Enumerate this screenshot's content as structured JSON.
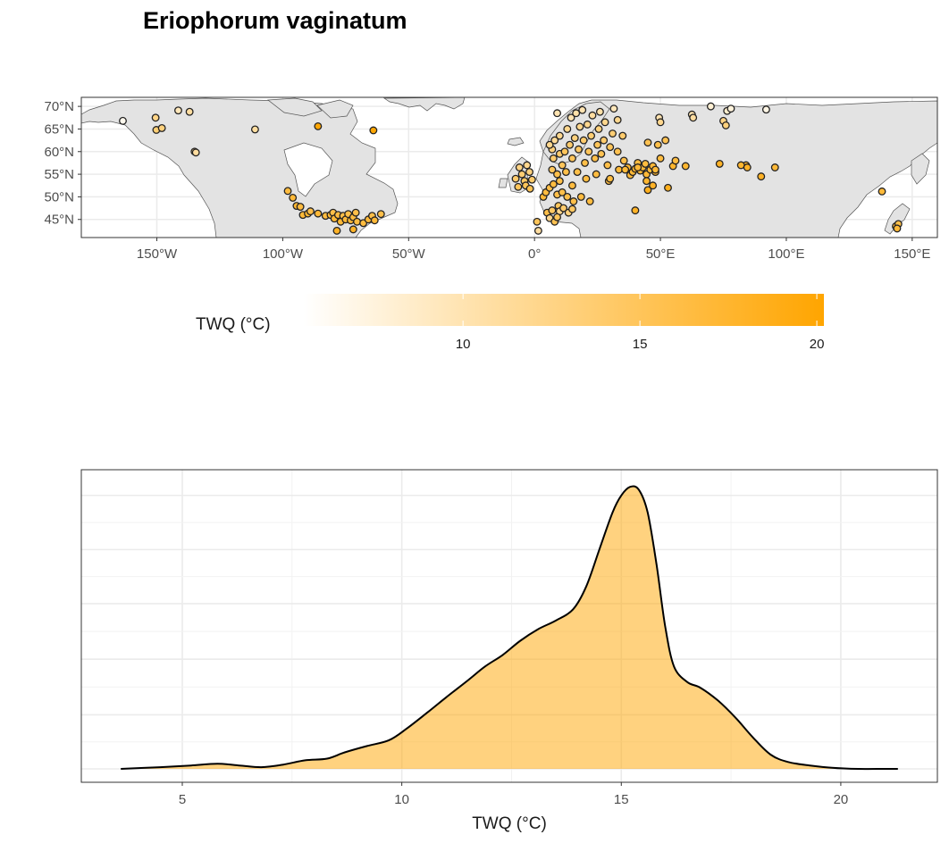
{
  "chart_data": [
    {
      "type": "scatter",
      "subtype": "map",
      "title": "Eriophorum vaginatum",
      "x_ticks": [
        {
          "value": -150,
          "label": "150°W"
        },
        {
          "value": -100,
          "label": "100°W"
        },
        {
          "value": -50,
          "label": "50°W"
        },
        {
          "value": 0,
          "label": "0°"
        },
        {
          "value": 50,
          "label": "50°E"
        },
        {
          "value": 100,
          "label": "100°E"
        },
        {
          "value": 150,
          "label": "150°E"
        }
      ],
      "y_ticks": [
        {
          "value": 45,
          "label": "45°N"
        },
        {
          "value": 50,
          "label": "50°N"
        },
        {
          "value": 55,
          "label": "55°N"
        },
        {
          "value": 60,
          "label": "60°N"
        },
        {
          "value": 65,
          "label": "65°N"
        },
        {
          "value": 70,
          "label": "70°N"
        }
      ],
      "xlim": [
        -180,
        160
      ],
      "ylim": [
        41,
        72
      ],
      "color_legend": {
        "title": "TWQ (°C)",
        "range": [
          5.5,
          20.2
        ],
        "ticks": [
          10,
          15,
          20
        ],
        "colors": [
          "#ffffff",
          "#ffa500"
        ]
      },
      "point_color_variable": "TWQ (°C)",
      "points": [
        [
          -163.5,
          66.8,
          6.5
        ],
        [
          -150.5,
          67.5,
          12.5
        ],
        [
          -150.2,
          64.8,
          13.5
        ],
        [
          -148,
          65.2,
          13
        ],
        [
          -141.5,
          69.1,
          9.5
        ],
        [
          -137,
          68.8,
          11
        ],
        [
          -135,
          60,
          12
        ],
        [
          -134.5,
          59.8,
          11
        ],
        [
          -111,
          64.9,
          11
        ],
        [
          -98,
          51.3,
          16.5
        ],
        [
          -96,
          49.8,
          17
        ],
        [
          -94.5,
          48,
          17.5
        ],
        [
          -93,
          47.8,
          16.5
        ],
        [
          -92,
          46,
          17
        ],
        [
          -90,
          46.3,
          17.5
        ],
        [
          -89,
          46.8,
          16
        ],
        [
          -86,
          46.3,
          17
        ],
        [
          -83,
          45.8,
          16.5
        ],
        [
          -81,
          46,
          17
        ],
        [
          -80,
          46.5,
          16
        ],
        [
          -79.5,
          45.2,
          17
        ],
        [
          -78,
          46,
          16.5
        ],
        [
          -77,
          44.5,
          17
        ],
        [
          -76,
          45.8,
          16
        ],
        [
          -75,
          45,
          17
        ],
        [
          -74,
          46.2,
          16
        ],
        [
          -73,
          44.8,
          17
        ],
        [
          -72,
          45.5,
          16.5
        ],
        [
          -71,
          46.5,
          16
        ],
        [
          -70.5,
          44.5,
          16.5
        ],
        [
          -68,
          44.2,
          16.5
        ],
        [
          -66,
          45,
          17
        ],
        [
          -64.5,
          45.8,
          16
        ],
        [
          -63.5,
          44.8,
          17
        ],
        [
          -61,
          46.2,
          16
        ],
        [
          -78.5,
          42.5,
          18
        ],
        [
          -72,
          42.8,
          18
        ],
        [
          -64,
          64.7,
          20
        ],
        [
          -86,
          65.6,
          20
        ],
        [
          -7.5,
          54,
          14
        ],
        [
          -6,
          56.5,
          12.5
        ],
        [
          -5,
          55,
          13.5
        ],
        [
          -4,
          53.5,
          14.5
        ],
        [
          -3,
          57,
          12
        ],
        [
          -2,
          55.5,
          13
        ],
        [
          -3.5,
          52.5,
          15
        ],
        [
          -6.5,
          52.2,
          15
        ],
        [
          -1.8,
          51.8,
          15.5
        ],
        [
          -1,
          53.8,
          14
        ],
        [
          1.5,
          42.5,
          11
        ],
        [
          3.5,
          50,
          17
        ],
        [
          4.5,
          51,
          16.5
        ],
        [
          5,
          46.5,
          16
        ],
        [
          6,
          52,
          16
        ],
        [
          6,
          45.3,
          12
        ],
        [
          7,
          47,
          14.5
        ],
        [
          7.5,
          52.8,
          16.5
        ],
        [
          7,
          56,
          15
        ],
        [
          7.5,
          58.5,
          14
        ],
        [
          7,
          60.5,
          13
        ],
        [
          6,
          61.5,
          12
        ],
        [
          8,
          62.5,
          11.5
        ],
        [
          9,
          55,
          16
        ],
        [
          9,
          50.5,
          16
        ],
        [
          9.5,
          48,
          15
        ],
        [
          10,
          46.8,
          12
        ],
        [
          10,
          53.5,
          16
        ],
        [
          10,
          59.5,
          14
        ],
        [
          10,
          63.5,
          12
        ],
        [
          11,
          57,
          15
        ],
        [
          11,
          51,
          16
        ],
        [
          11.5,
          47.5,
          14
        ],
        [
          12,
          60,
          15
        ],
        [
          12.5,
          55.5,
          16
        ],
        [
          13,
          50,
          16
        ],
        [
          13,
          65,
          12
        ],
        [
          13.5,
          46.5,
          13
        ],
        [
          14,
          61.5,
          14
        ],
        [
          14.5,
          67.5,
          10
        ],
        [
          15,
          58.5,
          15
        ],
        [
          15,
          52.5,
          16.5
        ],
        [
          15.5,
          49,
          16
        ],
        [
          15,
          47.3,
          14.5
        ],
        [
          16,
          63,
          13
        ],
        [
          16.5,
          68.5,
          10.5
        ],
        [
          17,
          55.5,
          16
        ],
        [
          17.5,
          60.5,
          14.5
        ],
        [
          18,
          65.5,
          12
        ],
        [
          18.5,
          50,
          16.5
        ],
        [
          19,
          69.2,
          10
        ],
        [
          19.5,
          62.5,
          14
        ],
        [
          20,
          57.5,
          16
        ],
        [
          20.5,
          54,
          16.5
        ],
        [
          21,
          66,
          12
        ],
        [
          21.5,
          60,
          15
        ],
        [
          22,
          49,
          16.5
        ],
        [
          22.5,
          63.5,
          13.5
        ],
        [
          23,
          68,
          11
        ],
        [
          24,
          58.5,
          16
        ],
        [
          24.5,
          55,
          16.5
        ],
        [
          25,
          61.5,
          15
        ],
        [
          25.5,
          65,
          13
        ],
        [
          26,
          68.8,
          10.5
        ],
        [
          26.5,
          59.5,
          15.5
        ],
        [
          27.5,
          62.5,
          14
        ],
        [
          28,
          66.5,
          12
        ],
        [
          29,
          57,
          16
        ],
        [
          29.5,
          53.5,
          16.5
        ],
        [
          30,
          61,
          15
        ],
        [
          31,
          64,
          13.5
        ],
        [
          31.5,
          69.5,
          9.5
        ],
        [
          33,
          67,
          12
        ],
        [
          33,
          60,
          15.5
        ],
        [
          33.5,
          56,
          17
        ],
        [
          35,
          63.5,
          14
        ],
        [
          35.5,
          58,
          16
        ],
        [
          37,
          56.5,
          17
        ],
        [
          38,
          54.8,
          17
        ],
        [
          39,
          55.5,
          17
        ],
        [
          40,
          56.2,
          17.5
        ],
        [
          41,
          57.5,
          16.5
        ],
        [
          42,
          55.8,
          17
        ],
        [
          43,
          56.5,
          17
        ],
        [
          44,
          57.3,
          16.5
        ],
        [
          44.5,
          55,
          17
        ],
        [
          45,
          62,
          15.5
        ],
        [
          46,
          56,
          17
        ],
        [
          47,
          56.8,
          17
        ],
        [
          48,
          55.5,
          17.5
        ],
        [
          49,
          61.5,
          16
        ],
        [
          50,
          58.5,
          16.5
        ],
        [
          52,
          62.5,
          15.5
        ],
        [
          30,
          54,
          16.5
        ],
        [
          9,
          68.5,
          10
        ],
        [
          1,
          44.5,
          15
        ],
        [
          8,
          44.5,
          15.5
        ],
        [
          9,
          45.5,
          15
        ],
        [
          49.5,
          67.5,
          10
        ],
        [
          50,
          66.5,
          12
        ],
        [
          44.5,
          53.5,
          17.5
        ],
        [
          45,
          51.5,
          18.5
        ],
        [
          47,
          52.5,
          18
        ],
        [
          53,
          52,
          18.5
        ],
        [
          55,
          56.8,
          17.5
        ],
        [
          56,
          58,
          16.5
        ],
        [
          62.5,
          68.2,
          10
        ],
        [
          75,
          66.8,
          12.5
        ],
        [
          76,
          65.8,
          13
        ],
        [
          76.5,
          69,
          8.5
        ],
        [
          78,
          69.5,
          7.5
        ],
        [
          84,
          57,
          17.5
        ],
        [
          92,
          69.3,
          7
        ],
        [
          95.5,
          56.5,
          17
        ],
        [
          73.5,
          57.3,
          18
        ],
        [
          82,
          57,
          17.5
        ],
        [
          84.5,
          56.5,
          18
        ],
        [
          90,
          54.5,
          18
        ],
        [
          70,
          70,
          8
        ],
        [
          48,
          56,
          17
        ],
        [
          41,
          56.5,
          17
        ],
        [
          36,
          56,
          17
        ],
        [
          138,
          51.2,
          17
        ],
        [
          143.5,
          43.5,
          16.5
        ],
        [
          144.5,
          44,
          16
        ],
        [
          144,
          43,
          17
        ],
        [
          40,
          47,
          18
        ],
        [
          60,
          56.8,
          17.5
        ],
        [
          63,
          67.5,
          11
        ]
      ]
    },
    {
      "type": "area",
      "subtype": "density",
      "title": "",
      "xlabel": "TWQ (°C)",
      "ylabel": "",
      "xlim": [
        2.7,
        22.2
      ],
      "x_ticks": [
        5,
        10,
        15,
        20
      ],
      "fill": "#ffa500",
      "fill_opacity": 0.5,
      "line_color": "#000000",
      "x": [
        3.6,
        4.5,
        5.2,
        5.8,
        6.3,
        6.8,
        7.3,
        7.8,
        8.3,
        8.7,
        9.2,
        9.7,
        10.1,
        10.6,
        11.0,
        11.5,
        11.9,
        12.3,
        12.7,
        13.1,
        13.5,
        13.9,
        14.2,
        14.5,
        14.8,
        15.0,
        15.2,
        15.4,
        15.6,
        15.8,
        16.0,
        16.2,
        16.5,
        16.8,
        17.2,
        17.6,
        18.0,
        18.4,
        18.8,
        19.3,
        19.8,
        20.4,
        21.0,
        21.3
      ],
      "y": [
        0.0,
        0.006,
        0.012,
        0.018,
        0.012,
        0.006,
        0.015,
        0.03,
        0.036,
        0.058,
        0.08,
        0.1,
        0.14,
        0.2,
        0.25,
        0.31,
        0.36,
        0.4,
        0.45,
        0.49,
        0.52,
        0.56,
        0.64,
        0.77,
        0.9,
        0.96,
        0.99,
        0.98,
        0.9,
        0.72,
        0.5,
        0.36,
        0.305,
        0.285,
        0.24,
        0.18,
        0.11,
        0.05,
        0.024,
        0.012,
        0.004,
        0.0,
        0.0,
        0.0
      ]
    }
  ]
}
